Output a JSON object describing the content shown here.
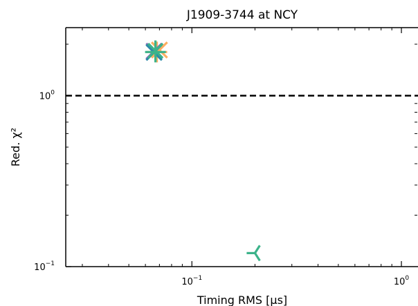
{
  "chart_data": {
    "type": "scatter",
    "title": "J1909-3744 at NCY",
    "xlabel": "Timing RMS  [μs]",
    "ylabel": "Red. χ²",
    "xscale": "log",
    "yscale": "log",
    "xlim": [
      0.025,
      1.2
    ],
    "ylim": [
      0.1,
      2.5
    ],
    "xticks": [
      {
        "value": 0.1,
        "base": "10",
        "exp": "−1"
      },
      {
        "value": 1.0,
        "base": "10",
        "exp": "0"
      }
    ],
    "yticks": [
      {
        "value": 0.1,
        "base": "10",
        "exp": "−1"
      },
      {
        "value": 1.0,
        "base": "10",
        "exp": "0"
      }
    ],
    "grid": false,
    "reference_line": {
      "y": 1.0,
      "style": "dashed",
      "color": "#000000"
    },
    "points": [
      {
        "x": 0.07,
        "y": 1.85,
        "marker": "x",
        "color": "#fdae61"
      },
      {
        "x": 0.068,
        "y": 1.8,
        "marker": "plus",
        "color": "#fdae61"
      },
      {
        "x": 0.066,
        "y": 1.82,
        "marker": "x",
        "color": "#8e6bb8"
      },
      {
        "x": 0.066,
        "y": 1.79,
        "marker": "x",
        "color": "#2e8ba8"
      },
      {
        "x": 0.067,
        "y": 1.8,
        "marker": "plus",
        "color": "#3cb38a"
      },
      {
        "x": 0.067,
        "y": 1.83,
        "marker": "star",
        "color": "#3cb38a"
      },
      {
        "x": 0.2,
        "y": 0.12,
        "marker": "tri_left",
        "color": "#3cb38a"
      }
    ]
  }
}
